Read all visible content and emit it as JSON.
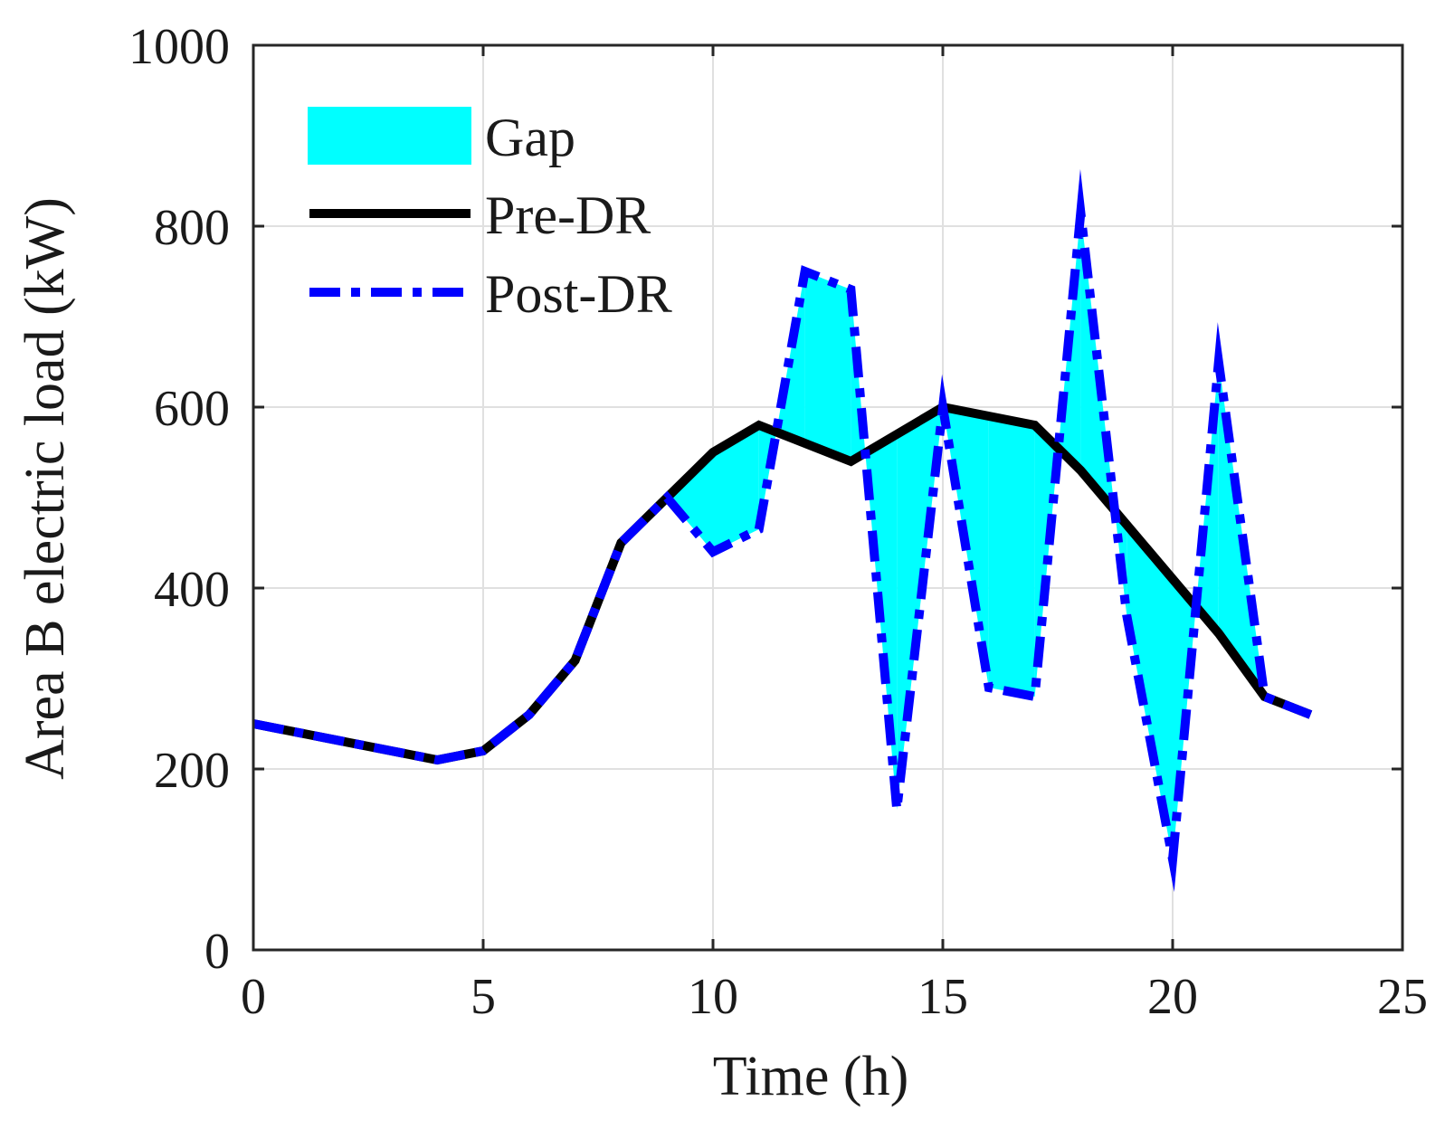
{
  "chart_data": {
    "type": "line",
    "title": "",
    "xlabel": "Time (h)",
    "ylabel": "Area B electric load (kW)",
    "xlim": [
      0,
      25
    ],
    "ylim": [
      0,
      1000
    ],
    "xticks": [
      0,
      5,
      10,
      15,
      20,
      25
    ],
    "yticks": [
      0,
      200,
      400,
      600,
      800,
      1000
    ],
    "xtick_labels": [
      "0",
      "5",
      "10",
      "15",
      "20",
      "25"
    ],
    "ytick_labels": [
      "0",
      "200",
      "400",
      "600",
      "800",
      "1000"
    ],
    "grid": true,
    "legend_position": "top-left",
    "x": [
      0,
      1,
      2,
      3,
      4,
      5,
      6,
      7,
      8,
      9,
      10,
      11,
      12,
      13,
      14,
      15,
      16,
      17,
      18,
      19,
      20,
      21,
      22,
      23
    ],
    "series": [
      {
        "name": "Pre-DR",
        "style": "solid",
        "color": "#000000",
        "values": [
          250,
          240,
          230,
          220,
          210,
          220,
          260,
          320,
          450,
          500,
          550,
          580,
          560,
          540,
          570,
          600,
          590,
          580,
          530,
          470,
          410,
          350,
          280,
          260
        ]
      },
      {
        "name": "Post-DR",
        "style": "dash-dot",
        "color": "#0000ff",
        "values": [
          250,
          240,
          230,
          220,
          210,
          220,
          260,
          320,
          450,
          500,
          440,
          465,
          750,
          730,
          155,
          600,
          290,
          280,
          815,
          370,
          100,
          650,
          280,
          260
        ]
      }
    ],
    "fill": {
      "name": "Gap",
      "color": "#00ffff",
      "between": [
        "Pre-DR",
        "Post-DR"
      ]
    },
    "legend": [
      {
        "label": "Gap",
        "kind": "patch",
        "color": "#00ffff"
      },
      {
        "label": "Pre-DR",
        "kind": "line",
        "color": "#000000"
      },
      {
        "label": "Post-DR",
        "kind": "line",
        "color": "#0000ff"
      }
    ]
  }
}
